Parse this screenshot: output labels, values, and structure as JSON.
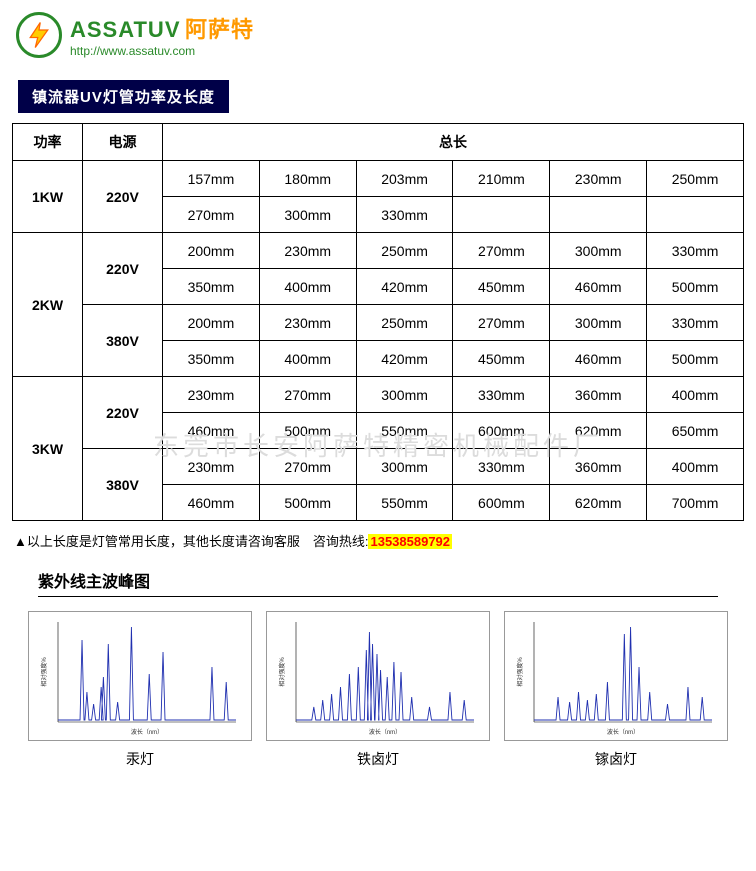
{
  "brand": {
    "name_en": "ASSATUV",
    "name_cn": "阿萨特",
    "url": "http://www.assatuv.com",
    "logo_border_color": "#2a8a2a",
    "bolt_fill": "#ffcc00",
    "bolt_stroke": "#ff6600"
  },
  "section_title": "镇流器UV灯管功率及长度",
  "watermark_text": "东莞市长安阿萨特精密机械配件厂",
  "table": {
    "headers": {
      "power": "功率",
      "voltage": "电源",
      "length": "总长"
    },
    "groups": [
      {
        "power": "1KW",
        "voltages": [
          {
            "v": "220V",
            "rows": [
              [
                "157mm",
                "180mm",
                "203mm",
                "210mm",
                "230mm",
                "250mm"
              ],
              [
                "270mm",
                "300mm",
                "330mm",
                "",
                "",
                ""
              ]
            ]
          }
        ]
      },
      {
        "power": "2KW",
        "voltages": [
          {
            "v": "220V",
            "rows": [
              [
                "200mm",
                "230mm",
                "250mm",
                "270mm",
                "300mm",
                "330mm"
              ],
              [
                "350mm",
                "400mm",
                "420mm",
                "450mm",
                "460mm",
                "500mm"
              ]
            ]
          },
          {
            "v": "380V",
            "rows": [
              [
                "200mm",
                "230mm",
                "250mm",
                "270mm",
                "300mm",
                "330mm"
              ],
              [
                "350mm",
                "400mm",
                "420mm",
                "450mm",
                "460mm",
                "500mm"
              ]
            ]
          }
        ]
      },
      {
        "power": "3KW",
        "voltages": [
          {
            "v": "220V",
            "rows": [
              [
                "230mm",
                "270mm",
                "300mm",
                "330mm",
                "360mm",
                "400mm"
              ],
              [
                "460mm",
                "500mm",
                "550mm",
                "600mm",
                "620mm",
                "650mm"
              ]
            ]
          },
          {
            "v": "380V",
            "rows": [
              [
                "230mm",
                "270mm",
                "300mm",
                "330mm",
                "360mm",
                "400mm"
              ],
              [
                "460mm",
                "500mm",
                "550mm",
                "600mm",
                "620mm",
                "700mm"
              ]
            ]
          }
        ]
      }
    ]
  },
  "note": {
    "prefix": "▲以上长度是灯管常用长度，其他长度请咨询客服　咨询热线:",
    "hotline": "13538589792"
  },
  "charts": {
    "section_title": "紫外线主波峰图",
    "axis_label_y": "相对强度%",
    "axis_label_x": "波长（nm）",
    "x_range": [
      200,
      600
    ],
    "y_range": [
      0,
      100
    ],
    "line_color": "#2030b0",
    "border_color": "#999999",
    "items": [
      {
        "label": "汞灯",
        "peaks": [
          {
            "x": 254,
            "h": 82
          },
          {
            "x": 265,
            "h": 30
          },
          {
            "x": 280,
            "h": 18
          },
          {
            "x": 297,
            "h": 35
          },
          {
            "x": 302,
            "h": 45
          },
          {
            "x": 313,
            "h": 78
          },
          {
            "x": 334,
            "h": 20
          },
          {
            "x": 365,
            "h": 95
          },
          {
            "x": 405,
            "h": 48
          },
          {
            "x": 436,
            "h": 70
          },
          {
            "x": 546,
            "h": 55
          },
          {
            "x": 578,
            "h": 40
          }
        ]
      },
      {
        "label": "铁卤灯",
        "peaks": [
          {
            "x": 240,
            "h": 15
          },
          {
            "x": 260,
            "h": 22
          },
          {
            "x": 280,
            "h": 28
          },
          {
            "x": 300,
            "h": 35
          },
          {
            "x": 320,
            "h": 48
          },
          {
            "x": 340,
            "h": 55
          },
          {
            "x": 358,
            "h": 72
          },
          {
            "x": 365,
            "h": 90
          },
          {
            "x": 372,
            "h": 78
          },
          {
            "x": 382,
            "h": 68
          },
          {
            "x": 390,
            "h": 52
          },
          {
            "x": 405,
            "h": 45
          },
          {
            "x": 420,
            "h": 60
          },
          {
            "x": 436,
            "h": 50
          },
          {
            "x": 460,
            "h": 25
          },
          {
            "x": 500,
            "h": 15
          },
          {
            "x": 546,
            "h": 30
          },
          {
            "x": 578,
            "h": 22
          }
        ]
      },
      {
        "label": "镓卤灯",
        "peaks": [
          {
            "x": 254,
            "h": 25
          },
          {
            "x": 280,
            "h": 20
          },
          {
            "x": 300,
            "h": 30
          },
          {
            "x": 320,
            "h": 22
          },
          {
            "x": 340,
            "h": 28
          },
          {
            "x": 365,
            "h": 40
          },
          {
            "x": 403,
            "h": 88
          },
          {
            "x": 417,
            "h": 95
          },
          {
            "x": 436,
            "h": 55
          },
          {
            "x": 460,
            "h": 30
          },
          {
            "x": 500,
            "h": 18
          },
          {
            "x": 546,
            "h": 35
          },
          {
            "x": 578,
            "h": 25
          }
        ]
      }
    ]
  }
}
